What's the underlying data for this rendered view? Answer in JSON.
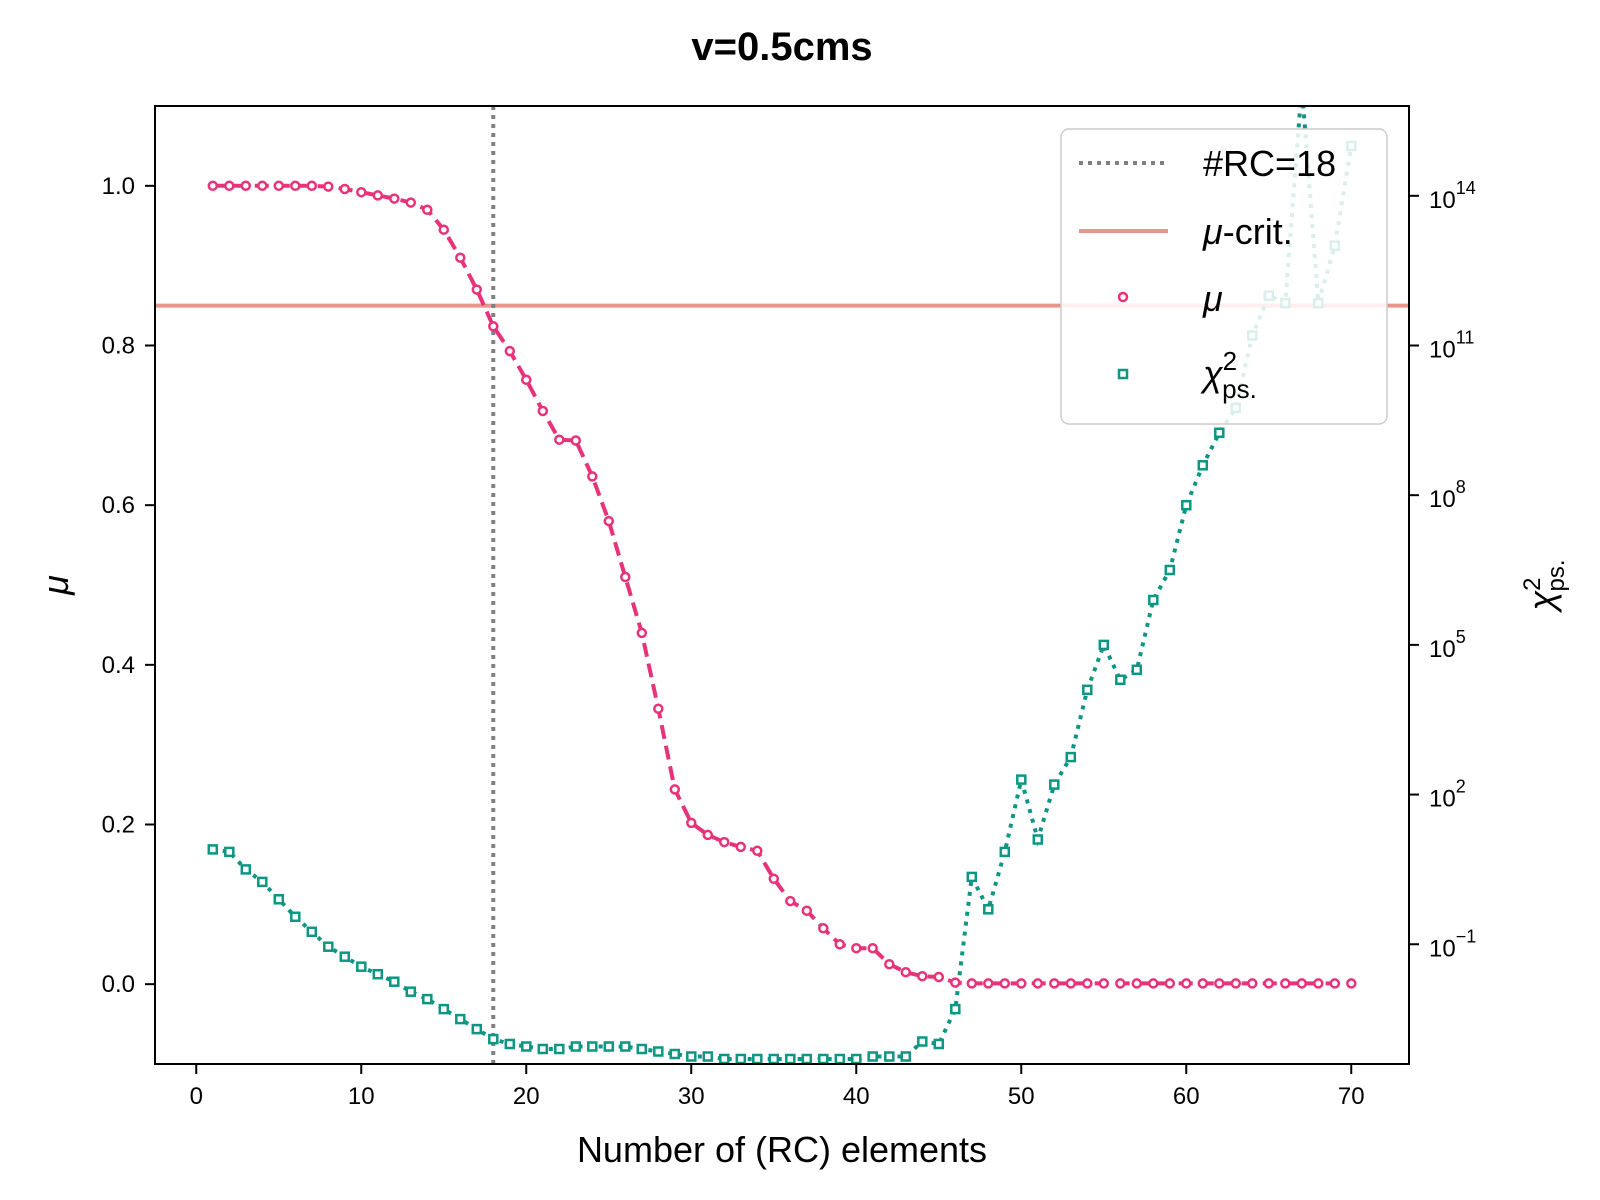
{
  "chart_data": {
    "type": "line",
    "title": "v=0.5cms",
    "xlabel": "Number of (RC) elements",
    "ylabel": "μ",
    "ylabel_right": "χ",
    "ylabel_right_sup": "2",
    "ylabel_right_sub": "ps.",
    "xlim": [
      -2.5,
      73.5
    ],
    "ylim": [
      -0.1,
      1.1
    ],
    "ylim_right_log10": [
      -3.4,
      15.8
    ],
    "x_ticks": [
      0,
      10,
      20,
      30,
      40,
      50,
      60,
      70
    ],
    "y_ticks": [
      "0.0",
      "0.2",
      "0.4",
      "0.6",
      "0.8",
      "1.0"
    ],
    "y_tick_values": [
      0.0,
      0.2,
      0.4,
      0.6,
      0.8,
      1.0
    ],
    "y_right_ticks": [
      {
        "base": "10",
        "exp": "−1",
        "value_log10": -1
      },
      {
        "base": "10",
        "exp": "2",
        "value_log10": 2
      },
      {
        "base": "10",
        "exp": "5",
        "value_log10": 5
      },
      {
        "base": "10",
        "exp": "8",
        "value_log10": 8
      },
      {
        "base": "10",
        "exp": "11",
        "value_log10": 11
      },
      {
        "base": "10",
        "exp": "14",
        "value_log10": 14
      }
    ],
    "vline": {
      "x": 18,
      "label": "#RC=18",
      "color": "#808080"
    },
    "hline": {
      "y": 0.85,
      "label_symbol": "μ",
      "label_suffix": "-crit.",
      "color": "#e8968a"
    },
    "legend_position": "upper right",
    "grid": false,
    "x": [
      1,
      2,
      3,
      4,
      5,
      6,
      7,
      8,
      9,
      10,
      11,
      12,
      13,
      14,
      15,
      16,
      17,
      18,
      19,
      20,
      21,
      22,
      23,
      24,
      25,
      26,
      27,
      28,
      29,
      30,
      31,
      32,
      33,
      34,
      35,
      36,
      37,
      38,
      39,
      40,
      41,
      42,
      43,
      44,
      45,
      46,
      47,
      48,
      49,
      50,
      51,
      52,
      53,
      54,
      55,
      56,
      57,
      58,
      59,
      60,
      61,
      62,
      63,
      64,
      65,
      66,
      67,
      68,
      69,
      70
    ],
    "series": [
      {
        "name": "μ",
        "axis": "left",
        "color": "#e8327a",
        "marker": "circle",
        "line": "dashed",
        "values": [
          1.0,
          1.0,
          1.0,
          1.0,
          1.0,
          1.0,
          1.0,
          0.999,
          0.996,
          0.992,
          0.988,
          0.984,
          0.979,
          0.97,
          0.945,
          0.91,
          0.87,
          0.824,
          0.793,
          0.757,
          0.718,
          0.682,
          0.681,
          0.636,
          0.58,
          0.51,
          0.44,
          0.345,
          0.244,
          0.202,
          0.187,
          0.178,
          0.172,
          0.167,
          0.132,
          0.104,
          0.092,
          0.07,
          0.05,
          0.045,
          0.045,
          0.025,
          0.015,
          0.01,
          0.009,
          0.002,
          0.001,
          0.001,
          0.001,
          0.001,
          0.001,
          0.001,
          0.001,
          0.001,
          0.001,
          0.001,
          0.001,
          0.001,
          0.001,
          0.001,
          0.001,
          0.001,
          0.001,
          0.001,
          0.001,
          0.001,
          0.001,
          0.001,
          0.001,
          0.001
        ]
      },
      {
        "name": "χ",
        "name_sup": "2",
        "name_sub": "ps.",
        "axis": "right",
        "scale": "log10",
        "color": "#0c9683",
        "marker": "square",
        "line": "dotted",
        "values_log10": [
          0.9,
          0.85,
          0.5,
          0.25,
          -0.1,
          -0.45,
          -0.75,
          -1.05,
          -1.25,
          -1.45,
          -1.6,
          -1.75,
          -1.95,
          -2.1,
          -2.3,
          -2.5,
          -2.7,
          -2.9,
          -3.0,
          -3.05,
          -3.1,
          -3.1,
          -3.05,
          -3.05,
          -3.05,
          -3.05,
          -3.1,
          -3.15,
          -3.2,
          -3.25,
          -3.25,
          -3.3,
          -3.3,
          -3.3,
          -3.3,
          -3.3,
          -3.3,
          -3.3,
          -3.3,
          -3.3,
          -3.25,
          -3.25,
          -3.25,
          -2.95,
          -3.0,
          -2.3,
          0.35,
          -0.3,
          0.85,
          2.3,
          1.1,
          2.2,
          2.75,
          4.1,
          5.0,
          4.3,
          4.5,
          5.9,
          6.5,
          7.8,
          8.6,
          9.25,
          9.75,
          11.2,
          12.0,
          11.85,
          16.2,
          11.85,
          13.0,
          15.0
        ]
      }
    ]
  }
}
